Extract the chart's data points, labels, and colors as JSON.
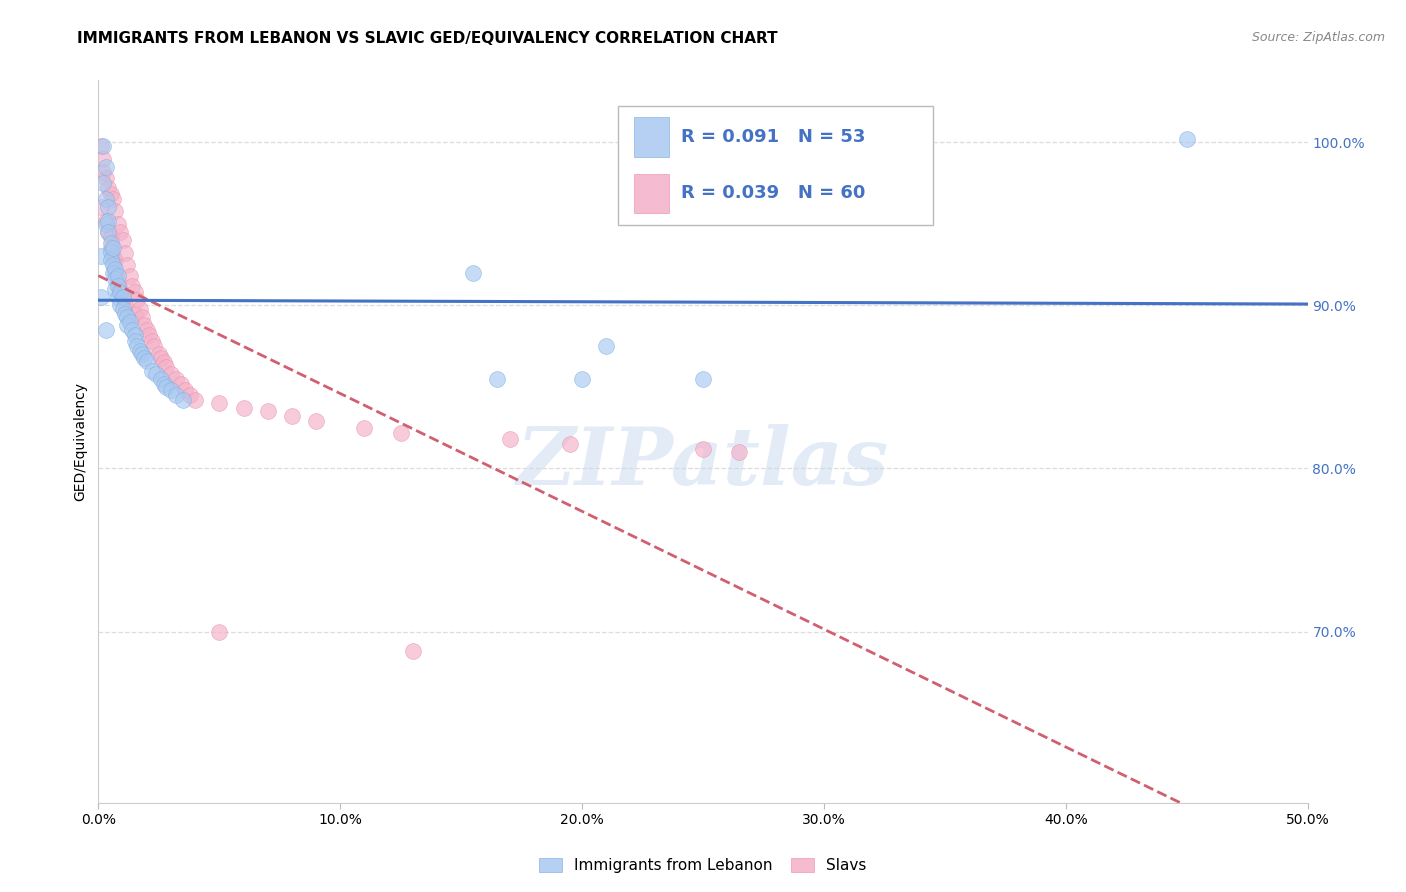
{
  "title": "IMMIGRANTS FROM LEBANON VS SLAVIC GED/EQUIVALENCY CORRELATION CHART",
  "source": "Source: ZipAtlas.com",
  "ylabel": "GED/Equivalency",
  "xlim": [
    0.0,
    0.5
  ],
  "ylim": [
    0.595,
    1.038
  ],
  "xticks": [
    0.0,
    0.1,
    0.2,
    0.3,
    0.4,
    0.5
  ],
  "xticklabels": [
    "0.0%",
    "10.0%",
    "20.0%",
    "30.0%",
    "40.0%",
    "50.0%"
  ],
  "yticks_right": [
    0.7,
    0.8,
    0.9,
    1.0
  ],
  "ytick_labels_right": [
    "70.0%",
    "80.0%",
    "90.0%",
    "100.0%"
  ],
  "series1_label": "Immigrants from Lebanon",
  "series2_label": "Slavs",
  "series1_color": "#a8c8f0",
  "series2_color": "#f4b0c8",
  "series1_edge": "#7aaee0",
  "series2_edge": "#e890a8",
  "trendline1_color": "#4472c4",
  "trendline2_color": "#d06070",
  "watermark_text": "ZIPatlas",
  "watermark_color": "#c8d8f0",
  "watermark_alpha": 0.5,
  "axis_label_color": "#4472c4",
  "grid_color": "#dddddd",
  "legend_box_color": "#cccccc",
  "legend_text_color": "#4472c4",
  "title_fontsize": 11,
  "source_fontsize": 9,
  "scatter_size": 130,
  "scatter_alpha": 0.65,
  "legend_R1": "R = 0.091",
  "legend_N1": "N = 53",
  "legend_R2": "R = 0.039",
  "legend_N2": "N = 60",
  "blue_x": [
    0.001,
    0.001,
    0.002,
    0.002,
    0.003,
    0.003,
    0.003,
    0.004,
    0.004,
    0.004,
    0.005,
    0.005,
    0.005,
    0.006,
    0.006,
    0.006,
    0.007,
    0.007,
    0.007,
    0.008,
    0.008,
    0.008,
    0.009,
    0.009,
    0.01,
    0.01,
    0.011,
    0.012,
    0.012,
    0.013,
    0.014,
    0.015,
    0.015,
    0.016,
    0.017,
    0.018,
    0.019,
    0.02,
    0.022,
    0.024,
    0.026,
    0.027,
    0.028,
    0.03,
    0.032,
    0.035,
    0.155,
    0.165,
    0.2,
    0.21,
    0.25,
    0.45,
    0.003
  ],
  "blue_y": [
    0.93,
    0.905,
    0.998,
    0.975,
    0.985,
    0.965,
    0.95,
    0.96,
    0.952,
    0.945,
    0.938,
    0.933,
    0.928,
    0.935,
    0.925,
    0.92,
    0.922,
    0.916,
    0.91,
    0.918,
    0.912,
    0.905,
    0.908,
    0.9,
    0.905,
    0.898,
    0.895,
    0.893,
    0.888,
    0.89,
    0.885,
    0.882,
    0.878,
    0.875,
    0.872,
    0.87,
    0.868,
    0.866,
    0.86,
    0.858,
    0.855,
    0.852,
    0.85,
    0.848,
    0.845,
    0.842,
    0.92,
    0.855,
    0.855,
    0.875,
    0.855,
    1.002,
    0.885
  ],
  "pink_x": [
    0.001,
    0.001,
    0.002,
    0.002,
    0.003,
    0.003,
    0.004,
    0.004,
    0.005,
    0.005,
    0.005,
    0.006,
    0.006,
    0.007,
    0.007,
    0.007,
    0.008,
    0.008,
    0.009,
    0.009,
    0.01,
    0.01,
    0.011,
    0.011,
    0.012,
    0.013,
    0.014,
    0.015,
    0.015,
    0.016,
    0.017,
    0.018,
    0.019,
    0.02,
    0.021,
    0.022,
    0.023,
    0.025,
    0.026,
    0.027,
    0.028,
    0.03,
    0.032,
    0.034,
    0.036,
    0.038,
    0.04,
    0.05,
    0.06,
    0.07,
    0.08,
    0.09,
    0.11,
    0.125,
    0.17,
    0.195,
    0.25,
    0.265,
    0.05,
    0.13
  ],
  "pink_y": [
    0.998,
    0.96,
    0.99,
    0.982,
    0.978,
    0.952,
    0.972,
    0.945,
    0.968,
    0.942,
    0.935,
    0.965,
    0.93,
    0.958,
    0.928,
    0.92,
    0.95,
    0.915,
    0.945,
    0.91,
    0.94,
    0.905,
    0.932,
    0.9,
    0.925,
    0.918,
    0.912,
    0.908,
    0.895,
    0.903,
    0.898,
    0.893,
    0.888,
    0.885,
    0.882,
    0.878,
    0.875,
    0.87,
    0.868,
    0.865,
    0.862,
    0.858,
    0.855,
    0.852,
    0.848,
    0.845,
    0.842,
    0.84,
    0.837,
    0.835,
    0.832,
    0.829,
    0.825,
    0.822,
    0.818,
    0.815,
    0.812,
    0.81,
    0.7,
    0.688
  ]
}
